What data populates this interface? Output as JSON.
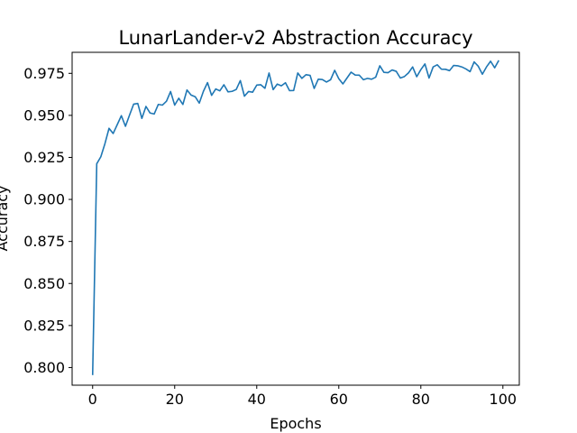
{
  "chart_data": {
    "type": "line",
    "title": "LunarLander-v2 Abstraction Accuracy",
    "xlabel": "Epochs",
    "ylabel": "Accuracy",
    "xlim": [
      -5,
      104
    ],
    "ylim": [
      0.7895,
      0.9875
    ],
    "x_ticks": [
      0,
      20,
      40,
      60,
      80,
      100
    ],
    "y_ticks": [
      0.8,
      0.825,
      0.85,
      0.875,
      0.9,
      0.925,
      0.95,
      0.975
    ],
    "x_tick_labels": [
      "0",
      "20",
      "40",
      "60",
      "80",
      "100"
    ],
    "y_tick_labels": [
      "0.800",
      "0.825",
      "0.850",
      "0.875",
      "0.900",
      "0.925",
      "0.950",
      "0.975"
    ],
    "grid": false,
    "colors": {
      "line": "#1f77b4",
      "axes": "#000000",
      "background": "#ffffff"
    },
    "series": [
      {
        "x": [
          0,
          1,
          2,
          3,
          4,
          5,
          6,
          7,
          8,
          9,
          10,
          11,
          12,
          13,
          14,
          15,
          16,
          17,
          18,
          19,
          20,
          21,
          22,
          23,
          24,
          25,
          26,
          27,
          28,
          29,
          30,
          31,
          32,
          33,
          34,
          35,
          36,
          37,
          38,
          39,
          40,
          41,
          42,
          43,
          44,
          45,
          46,
          47,
          48,
          49,
          50,
          51,
          52,
          53,
          54,
          55,
          56,
          57,
          58,
          59,
          60,
          61,
          62,
          63,
          64,
          65,
          66,
          67,
          68,
          69,
          70,
          71,
          72,
          73,
          74,
          75,
          76,
          77,
          78,
          79,
          80,
          81,
          82,
          83,
          84,
          85,
          86,
          87,
          88,
          89,
          90,
          91,
          92,
          93,
          94,
          95,
          96,
          97,
          98,
          99
        ],
        "values": [
          0.7955,
          0.9212,
          0.9254,
          0.9332,
          0.9423,
          0.9392,
          0.9445,
          0.9498,
          0.9435,
          0.9502,
          0.9567,
          0.9571,
          0.9482,
          0.9553,
          0.9514,
          0.9508,
          0.9565,
          0.9561,
          0.9584,
          0.9642,
          0.9561,
          0.9602,
          0.9565,
          0.9651,
          0.9621,
          0.9611,
          0.9573,
          0.9643,
          0.9695,
          0.9619,
          0.9657,
          0.9646,
          0.9682,
          0.964,
          0.9643,
          0.9654,
          0.9707,
          0.9614,
          0.9642,
          0.9638,
          0.968,
          0.9682,
          0.9661,
          0.9752,
          0.9653,
          0.9686,
          0.9676,
          0.9694,
          0.9647,
          0.9648,
          0.9752,
          0.972,
          0.9742,
          0.9738,
          0.966,
          0.9715,
          0.9713,
          0.9698,
          0.9712,
          0.9768,
          0.9718,
          0.9687,
          0.9722,
          0.9757,
          0.974,
          0.9739,
          0.9712,
          0.972,
          0.9715,
          0.9727,
          0.9795,
          0.9756,
          0.9754,
          0.977,
          0.9762,
          0.9722,
          0.9731,
          0.9753,
          0.9788,
          0.973,
          0.9772,
          0.9806,
          0.9722,
          0.9788,
          0.9801,
          0.9775,
          0.9774,
          0.9766,
          0.9797,
          0.9795,
          0.9788,
          0.9776,
          0.976,
          0.9818,
          0.9792,
          0.9745,
          0.9788,
          0.9822,
          0.9783,
          0.9827
        ]
      }
    ]
  }
}
